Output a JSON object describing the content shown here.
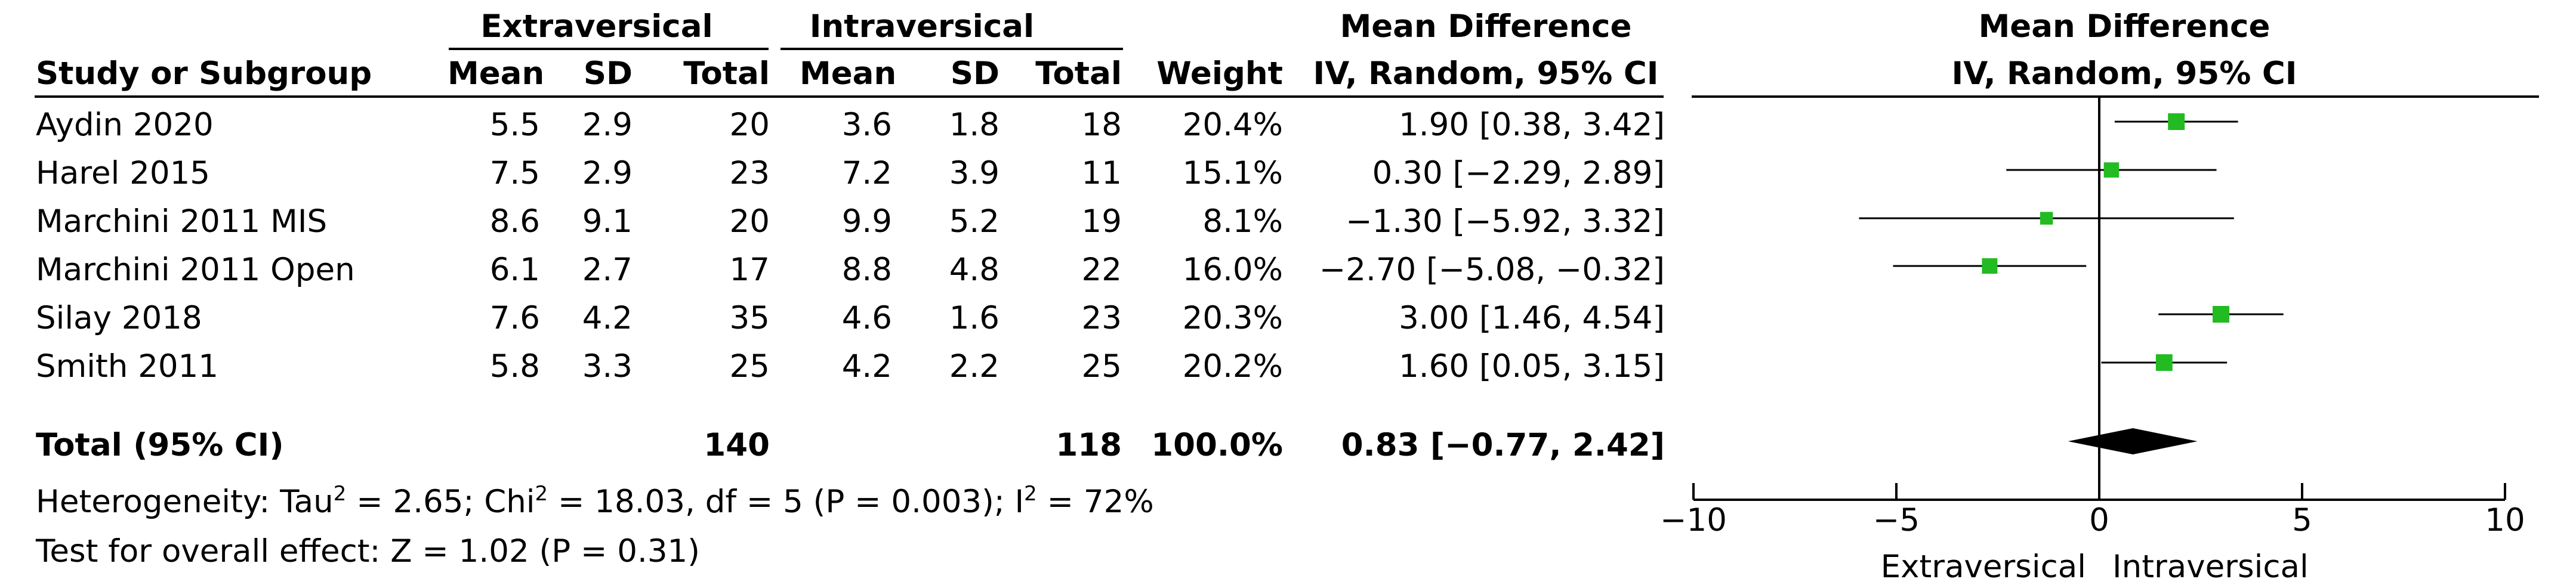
{
  "header": {
    "group_exp": "Extraversical",
    "group_ctrl": "Intraversical",
    "effect_title": "Mean Difference",
    "effect_sub": "IV, Random, 95% CI",
    "plot_title": "Mean Difference",
    "plot_sub": "IV, Random, 95% CI",
    "col_study": "Study or Subgroup",
    "col_mean": "Mean",
    "col_sd": "SD",
    "col_total": "Total",
    "col_weight": "Weight"
  },
  "rows": [
    {
      "study": "Aydin 2020",
      "m1": "5.5",
      "sd1": "2.9",
      "n1": "20",
      "m2": "3.6",
      "sd2": "1.8",
      "n2": "18",
      "weight": "20.4%",
      "ci": "1.90 [0.38, 3.42]"
    },
    {
      "study": "Harel 2015",
      "m1": "7.5",
      "sd1": "2.9",
      "n1": "23",
      "m2": "7.2",
      "sd2": "3.9",
      "n2": "11",
      "weight": "15.1%",
      "ci": "0.30 [−2.29, 2.89]"
    },
    {
      "study": "Marchini 2011 MIS",
      "m1": "8.6",
      "sd1": "9.1",
      "n1": "20",
      "m2": "9.9",
      "sd2": "5.2",
      "n2": "19",
      "weight": "8.1%",
      "ci": "−1.30 [−5.92, 3.32]"
    },
    {
      "study": "Marchini 2011 Open",
      "m1": "6.1",
      "sd1": "2.7",
      "n1": "17",
      "m2": "8.8",
      "sd2": "4.8",
      "n2": "22",
      "weight": "16.0%",
      "ci": "−2.70 [−5.08, −0.32]"
    },
    {
      "study": "Silay 2018",
      "m1": "7.6",
      "sd1": "4.2",
      "n1": "35",
      "m2": "4.6",
      "sd2": "1.6",
      "n2": "23",
      "weight": "20.3%",
      "ci": "3.00 [1.46, 4.54]"
    },
    {
      "study": "Smith 2011",
      "m1": "5.8",
      "sd1": "3.3",
      "n1": "25",
      "m2": "4.2",
      "sd2": "2.2",
      "n2": "25",
      "weight": "20.2%",
      "ci": "1.60 [0.05, 3.15]"
    }
  ],
  "total": {
    "label": "Total (95% CI)",
    "n1": "140",
    "n2": "118",
    "weight": "100.0%",
    "ci": "0.83 [−0.77, 2.42]"
  },
  "footer": {
    "het_a": "Heterogeneity: Tau",
    "het_sup1": "2",
    "het_b": " = 2.65; Chi",
    "het_sup2": "2",
    "het_c": " = 18.03, df = 5 (P = 0.003); I",
    "het_sup3": "2",
    "het_d": " = 72%",
    "overall": "Test for overall effect: Z = 1.02 (P = 0.31)"
  },
  "colors": {
    "square": "#22bb22",
    "line": "#000000",
    "diamond": "#000000"
  },
  "chart_data": {
    "type": "forest",
    "xlim": [
      -10,
      10
    ],
    "x_ticks": [
      -10,
      -5,
      0,
      5,
      10
    ],
    "x_tick_labels": [
      "−10",
      "−5",
      "0",
      "5",
      "10"
    ],
    "xlabel_left": "Extraversical",
    "xlabel_right": "Intraversical",
    "studies": [
      {
        "name": "Aydin 2020",
        "md": 1.9,
        "lo": 0.38,
        "hi": 3.42,
        "weight": 20.4
      },
      {
        "name": "Harel 2015",
        "md": 0.3,
        "lo": -2.29,
        "hi": 2.89,
        "weight": 15.1
      },
      {
        "name": "Marchini 2011 MIS",
        "md": -1.3,
        "lo": -5.92,
        "hi": 3.32,
        "weight": 8.1
      },
      {
        "name": "Marchini 2011 Open",
        "md": -2.7,
        "lo": -5.08,
        "hi": -0.32,
        "weight": 16.0
      },
      {
        "name": "Silay 2018",
        "md": 3.0,
        "lo": 1.46,
        "hi": 4.54,
        "weight": 20.3
      },
      {
        "name": "Smith 2011",
        "md": 1.6,
        "lo": 0.05,
        "hi": 3.15,
        "weight": 20.2
      }
    ],
    "pooled": {
      "md": 0.83,
      "lo": -0.77,
      "hi": 2.42
    }
  }
}
